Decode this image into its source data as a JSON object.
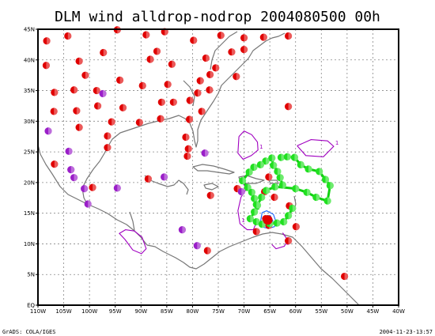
{
  "chart_data": {
    "type": "scatter",
    "title": "DLM  wind  alldrop-nodrop  2004080500  00h",
    "footer_left": "GrADS: COLA/IGES",
    "footer_right": "2004-11-23-13:57",
    "xlim": [
      -110,
      -40
    ],
    "ylim": [
      0,
      45
    ],
    "x_ticks": [
      -110,
      -105,
      -100,
      -95,
      -90,
      -85,
      -80,
      -75,
      -70,
      -65,
      -60,
      -55,
      -50,
      -45,
      -40
    ],
    "y_ticks": [
      0,
      5,
      10,
      15,
      20,
      25,
      30,
      35,
      40,
      45
    ],
    "x_tick_labels": [
      "110W",
      "105W",
      "100W",
      "95W",
      "90W",
      "85W",
      "80W",
      "75W",
      "70W",
      "65W",
      "60W",
      "55W",
      "50W",
      "45W",
      "40W"
    ],
    "y_tick_labels": [
      "EQ",
      "5N",
      "10N",
      "15N",
      "20N",
      "25N",
      "30N",
      "35N",
      "40N",
      "45N"
    ],
    "grid": true,
    "colors": {
      "red": "#e00000",
      "purple": "#9a1ec8",
      "green": "#20e020",
      "contour_purple": "#a000c0",
      "contour_blue": "#1060ff",
      "coast": "#777777"
    },
    "series": [
      {
        "color": "red",
        "points": [
          [
            -108.3,
            43.1
          ],
          [
            -104.2,
            43.9
          ],
          [
            -94.6,
            44.9
          ],
          [
            -89.0,
            44.1
          ],
          [
            -85.4,
            44.6
          ],
          [
            -79.8,
            43.2
          ],
          [
            -74.5,
            44.0
          ],
          [
            -70.0,
            43.6
          ],
          [
            -66.2,
            43.7
          ],
          [
            -61.4,
            43.9
          ],
          [
            -108.4,
            39.1
          ],
          [
            -102.0,
            39.8
          ],
          [
            -97.3,
            41.2
          ],
          [
            -100.8,
            37.5
          ],
          [
            -86.9,
            41.4
          ],
          [
            -88.2,
            40.1
          ],
          [
            -84.0,
            39.3
          ],
          [
            -77.4,
            40.3
          ],
          [
            -72.4,
            41.3
          ],
          [
            -70.0,
            41.7
          ],
          [
            -106.8,
            34.7
          ],
          [
            -103.0,
            35.1
          ],
          [
            -98.6,
            35.0
          ],
          [
            -94.1,
            36.7
          ],
          [
            -89.7,
            35.8
          ],
          [
            -84.8,
            36.0
          ],
          [
            -78.5,
            36.6
          ],
          [
            -76.6,
            37.6
          ],
          [
            -75.5,
            38.7
          ],
          [
            -71.5,
            37.3
          ],
          [
            -106.9,
            31.6
          ],
          [
            -102.5,
            31.7
          ],
          [
            -98.4,
            32.5
          ],
          [
            -93.5,
            32.2
          ],
          [
            -86.0,
            33.1
          ],
          [
            -83.7,
            33.1
          ],
          [
            -80.5,
            33.4
          ],
          [
            -79.0,
            34.6
          ],
          [
            -76.7,
            35.1
          ],
          [
            -61.4,
            32.4
          ],
          [
            -102.0,
            29.0
          ],
          [
            -95.7,
            29.9
          ],
          [
            -90.3,
            29.8
          ],
          [
            -86.2,
            30.4
          ],
          [
            -80.6,
            30.3
          ],
          [
            -78.2,
            31.6
          ],
          [
            -81.3,
            27.4
          ],
          [
            -96.5,
            27.6
          ],
          [
            -96.5,
            25.7
          ],
          [
            -80.8,
            25.5
          ],
          [
            -81.0,
            24.3
          ],
          [
            -106.8,
            23.0
          ],
          [
            -99.4,
            19.2
          ],
          [
            -88.6,
            20.6
          ],
          [
            -76.5,
            17.9
          ],
          [
            -65.2,
            20.9
          ],
          [
            -71.3,
            19.0
          ],
          [
            -66.0,
            18.5
          ],
          [
            -64.1,
            17.6
          ],
          [
            -61.2,
            16.2
          ],
          [
            -59.9,
            12.8
          ],
          [
            -61.4,
            10.5
          ],
          [
            -65.8,
            14.1
          ],
          [
            -65.2,
            13.0
          ],
          [
            -67.6,
            12.0
          ],
          [
            -77.1,
            8.9
          ],
          [
            -50.5,
            4.7
          ]
        ]
      },
      {
        "color": "purple",
        "points": [
          [
            -108.0,
            28.4
          ],
          [
            -104.0,
            25.1
          ],
          [
            -103.6,
            22.1
          ],
          [
            -103.0,
            20.8
          ],
          [
            -101.0,
            19.0
          ],
          [
            -100.3,
            16.5
          ],
          [
            -94.6,
            19.1
          ],
          [
            -97.4,
            34.5
          ],
          [
            -85.5,
            20.9
          ],
          [
            -82.0,
            12.3
          ],
          [
            -77.6,
            24.8
          ],
          [
            -79.1,
            9.7
          ],
          [
            -70.5,
            18.5
          ]
        ]
      },
      {
        "color": "green",
        "points": [
          [
            -62.8,
            24.1
          ],
          [
            -61.6,
            24.2
          ],
          [
            -60.2,
            24.1
          ],
          [
            -59.0,
            22.9
          ],
          [
            -57.5,
            22.2
          ],
          [
            -55.4,
            21.8
          ],
          [
            -54.2,
            20.5
          ],
          [
            -53.3,
            19.5
          ],
          [
            -53.8,
            17.0
          ],
          [
            -56.0,
            17.6
          ],
          [
            -57.8,
            18.4
          ],
          [
            -60.0,
            19.0
          ],
          [
            -64.0,
            19.3
          ],
          [
            -65.7,
            18.7
          ],
          [
            -66.6,
            17.6
          ],
          [
            -67.4,
            16.3
          ],
          [
            -68.0,
            15.2
          ],
          [
            -68.8,
            14.1
          ],
          [
            -67.6,
            13.6
          ],
          [
            -66.5,
            13.2
          ],
          [
            -65.0,
            13.3
          ],
          [
            -63.6,
            13.4
          ],
          [
            -62.3,
            13.6
          ],
          [
            -61.4,
            14.6
          ],
          [
            -60.6,
            15.8
          ],
          [
            -62.5,
            19.6
          ],
          [
            -63.0,
            20.8
          ],
          [
            -63.5,
            21.8
          ],
          [
            -64.3,
            22.8
          ],
          [
            -64.6,
            24.0
          ],
          [
            -65.8,
            23.5
          ],
          [
            -66.8,
            22.9
          ],
          [
            -68.1,
            22.5
          ],
          [
            -69.0,
            21.7
          ],
          [
            -70.3,
            20.3
          ],
          [
            -69.3,
            19.2
          ],
          [
            -68.5,
            18.4
          ],
          [
            -68.0,
            17.4
          ],
          [
            -67.6,
            16.4
          ]
        ]
      }
    ],
    "tracks": [
      {
        "color": "green",
        "points": [
          [
            -62.8,
            24.1
          ],
          [
            -61.6,
            24.2
          ],
          [
            -60.2,
            24.1
          ],
          [
            -59.0,
            22.9
          ],
          [
            -57.5,
            22.2
          ],
          [
            -55.4,
            21.8
          ],
          [
            -54.2,
            20.5
          ],
          [
            -53.3,
            19.5
          ],
          [
            -53.8,
            17.0
          ],
          [
            -56.0,
            17.6
          ],
          [
            -57.8,
            18.4
          ],
          [
            -60.0,
            19.0
          ],
          [
            -62.2,
            19.2
          ],
          [
            -64.0,
            19.3
          ],
          [
            -65.7,
            18.7
          ],
          [
            -66.6,
            17.6
          ],
          [
            -67.4,
            16.3
          ],
          [
            -68.0,
            15.2
          ],
          [
            -68.8,
            14.1
          ],
          [
            -67.6,
            13.6
          ],
          [
            -66.5,
            13.2
          ],
          [
            -65.0,
            13.3
          ],
          [
            -63.6,
            13.4
          ],
          [
            -62.3,
            13.6
          ],
          [
            -61.4,
            14.6
          ],
          [
            -60.6,
            15.8
          ]
        ]
      },
      {
        "color": "green",
        "points": [
          [
            -62.5,
            19.6
          ],
          [
            -63.0,
            20.8
          ],
          [
            -63.5,
            21.8
          ],
          [
            -64.3,
            22.8
          ],
          [
            -64.6,
            24.0
          ],
          [
            -65.8,
            23.5
          ],
          [
            -66.8,
            22.9
          ],
          [
            -68.1,
            22.5
          ],
          [
            -69.0,
            21.7
          ],
          [
            -70.3,
            20.3
          ],
          [
            -69.3,
            19.2
          ],
          [
            -68.5,
            18.4
          ],
          [
            -68.0,
            17.4
          ],
          [
            -67.6,
            16.4
          ],
          [
            -67.2,
            15.6
          ]
        ]
      }
    ],
    "contours": [
      {
        "color": "contour_purple",
        "label": "1",
        "points": [
          [
            -59.7,
            26.0
          ],
          [
            -57.0,
            27.0
          ],
          [
            -53.8,
            26.8
          ],
          [
            -52.6,
            25.9
          ],
          [
            -54.6,
            24.2
          ],
          [
            -58.0,
            24.4
          ],
          [
            -59.7,
            26.0
          ]
        ]
      },
      {
        "color": "contour_purple",
        "label": "1",
        "points": [
          [
            -71.0,
            27.5
          ],
          [
            -70.0,
            28.4
          ],
          [
            -68.5,
            27.8
          ],
          [
            -67.4,
            26.6
          ],
          [
            -67.3,
            25.3
          ],
          [
            -68.6,
            24.4
          ],
          [
            -70.2,
            23.8
          ],
          [
            -71.2,
            24.8
          ],
          [
            -71.0,
            27.5
          ]
        ]
      },
      {
        "color": "contour_purple",
        "points": [
          [
            -93.1,
            10.7
          ],
          [
            -94.2,
            11.7
          ],
          [
            -93.0,
            12.3
          ],
          [
            -91.3,
            12.1
          ],
          [
            -89.8,
            11.1
          ],
          [
            -89.0,
            9.2
          ],
          [
            -89.9,
            8.4
          ],
          [
            -91.6,
            9.0
          ],
          [
            -93.1,
            10.7
          ]
        ]
      },
      {
        "color": "contour_purple",
        "label": "1",
        "points": [
          [
            -70.5,
            20.2
          ],
          [
            -69.5,
            19.0
          ],
          [
            -70.6,
            17.6
          ],
          [
            -71.2,
            15.4
          ],
          [
            -70.8,
            13.3
          ],
          [
            -69.4,
            12.3
          ],
          [
            -68.2,
            12.3
          ],
          [
            -67.6,
            13.5
          ]
        ]
      },
      {
        "color": "contour_purple",
        "label": "1",
        "points": [
          [
            -62.5,
            11.8
          ],
          [
            -61.5,
            10.6
          ],
          [
            -62.2,
            9.6
          ],
          [
            -63.8,
            9.2
          ],
          [
            -64.6,
            9.9
          ]
        ]
      },
      {
        "color": "contour_blue",
        "label": "1",
        "points": [
          [
            -66.5,
            15.1
          ],
          [
            -65.6,
            15.4
          ],
          [
            -64.3,
            14.8
          ],
          [
            -63.8,
            13.6
          ],
          [
            -64.1,
            12.8
          ],
          [
            -65.2,
            12.5
          ],
          [
            -66.2,
            12.7
          ],
          [
            -66.8,
            13.6
          ],
          [
            -66.5,
            15.1
          ]
        ]
      },
      {
        "color": "contour_blue",
        "points": [
          [
            -66.0,
            14.6
          ],
          [
            -64.9,
            14.6
          ],
          [
            -64.4,
            13.7
          ],
          [
            -64.8,
            13.0
          ],
          [
            -65.6,
            13.0
          ],
          [
            -66.1,
            13.7
          ],
          [
            -66.0,
            14.6
          ]
        ]
      }
    ]
  }
}
